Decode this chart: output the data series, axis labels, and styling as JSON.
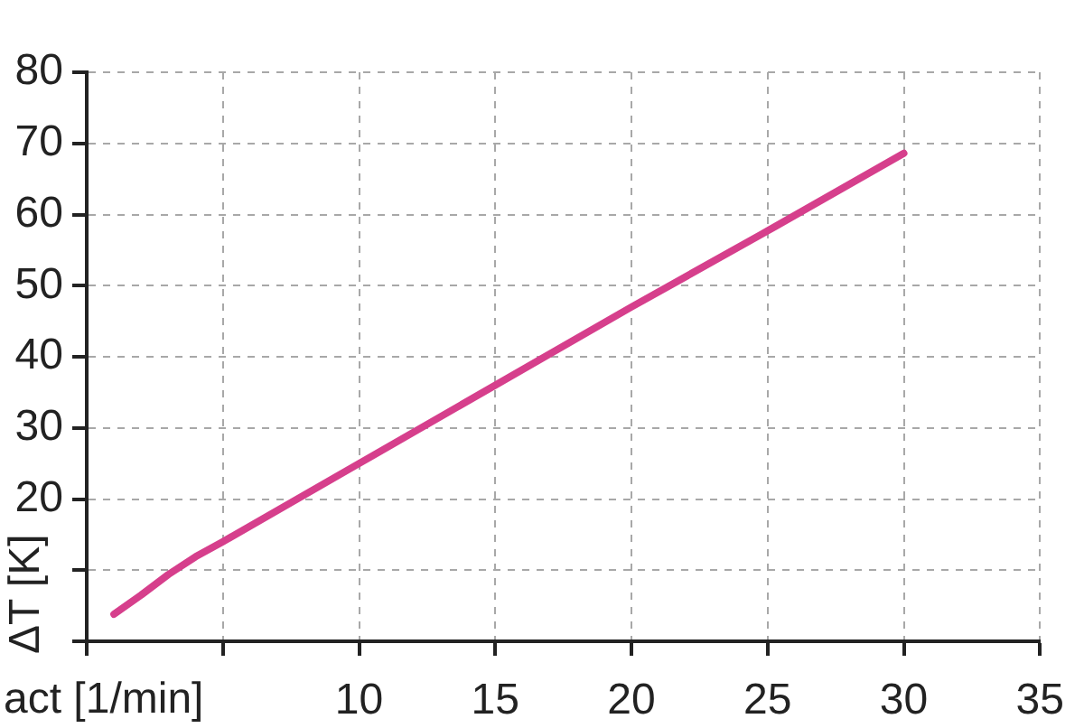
{
  "chart_data": {
    "type": "line",
    "xlabel": "act [1/min]",
    "ylabel": "ΔT [K]",
    "x": [
      1,
      2,
      3,
      4,
      5,
      10,
      15,
      20,
      25,
      30
    ],
    "series": [
      {
        "color": "#d63f8c",
        "values": [
          3.8,
          6.5,
          9.4,
          11.9,
          14.0,
          25.0,
          36.0,
          47.0,
          57.7,
          68.6
        ]
      }
    ],
    "xlim": [
      0,
      35
    ],
    "ylim": [
      0,
      80
    ],
    "xticks": [
      {
        "value": 0,
        "label": null
      },
      {
        "value": 5,
        "label": null
      },
      10,
      15,
      20,
      25,
      30,
      35
    ],
    "yticks": [
      {
        "value": 0,
        "label": null
      },
      {
        "value": 10,
        "label": null
      },
      20,
      30,
      40,
      50,
      60,
      70,
      80
    ],
    "grid": true,
    "marker": "none",
    "line_style": "solid"
  }
}
